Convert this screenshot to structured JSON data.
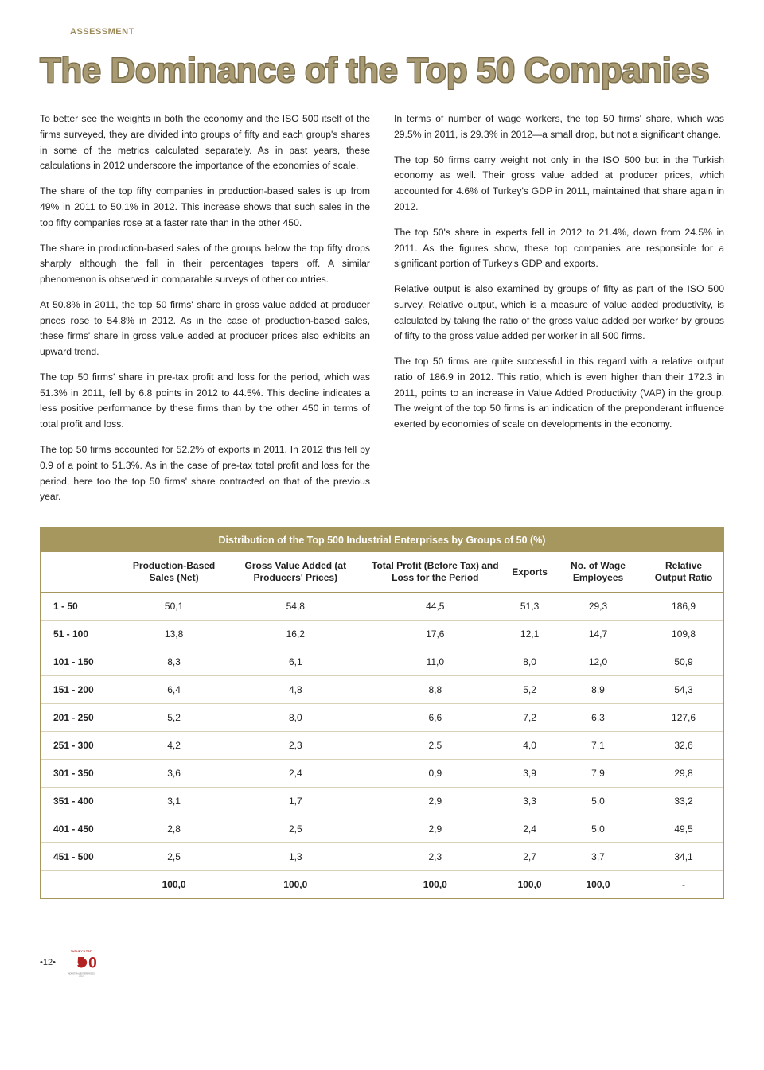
{
  "header": {
    "section_label": "ASSESSMENT",
    "title": "The Dominance of the Top 50 Companies"
  },
  "body": {
    "paragraphs": [
      "To better see the weights in both the economy and the ISO 500 itself of the firms surveyed, they are divided into groups of fifty and each group's shares in some of the metrics calculated separately. As in past years, these calculations in 2012 underscore the importance of the economies of scale.",
      "The share of the top fifty companies in production-based sales is up from 49% in 2011 to 50.1% in 2012. This increase shows that such sales in the top fifty companies rose at a faster rate than in the other 450.",
      "The share in production-based sales of the groups below the top fifty drops sharply although the fall in their percentages tapers off. A similar phenomenon is observed in comparable surveys of other countries.",
      "At 50.8% in 2011, the top 50 firms' share in gross value added at producer prices rose to 54.8% in 2012. As in the case of production-based sales, these firms' share in gross value added at producer prices also exhibits an upward trend.",
      "The top 50 firms' share in pre-tax profit and loss for the period, which was 51.3% in 2011, fell by 6.8 points in 2012 to 44.5%. This decline indicates a less positive performance by these firms than by the other 450 in terms of total profit and loss.",
      "The top 50 firms accounted for 52.2% of exports in 2011. In 2012 this fell by 0.9 of a point to 51.3%. As in the case of pre-tax total profit and loss for the period, here too the top 50 firms' share contracted on that of the previous year.",
      "In terms of number of wage workers, the top 50 firms' share, which was 29.5% in 2011, is 29.3% in 2012—a small drop, but not a significant change.",
      "The top 50 firms carry weight not only in the ISO 500 but in the Turkish economy as well. Their gross value added at producer prices, which accounted for 4.6% of Turkey's GDP in 2011, maintained that share again in 2012.",
      "The top 50's share in experts fell in 2012 to 21.4%, down from 24.5% in 2011. As the figures show, these top companies are responsible for a significant portion of Turkey's GDP and exports.",
      "Relative output is also examined by groups of fifty as part of the ISO 500 survey. Relative output, which is a measure of value added productivity, is calculated by taking the ratio of the gross value added per worker by groups of fifty to the gross value added per worker in all 500 firms.",
      "The top 50 firms are quite successful in this regard with a relative output ratio of 186.9 in 2012. This ratio, which is even higher than their 172.3 in 2011, points to an increase in Value Added Productivity (VAP) in the group. The weight of the top 50 firms is an indication of the preponderant influence exerted by economies of scale on developments in the economy."
    ]
  },
  "table": {
    "type": "table",
    "title": "Distribution of the Top 500 Industrial Enterprises by Groups of 50 (%)",
    "columns": [
      "",
      "Production-Based Sales (Net)",
      "Gross Value Added (at Producers' Prices)",
      "Total Profit (Before Tax) and Loss for the Period",
      "Exports",
      "No. of Wage Employees",
      "Relative Output Ratio"
    ],
    "rows": [
      [
        "1 - 50",
        "50,1",
        "54,8",
        "44,5",
        "51,3",
        "29,3",
        "186,9"
      ],
      [
        "51 - 100",
        "13,8",
        "16,2",
        "17,6",
        "12,1",
        "14,7",
        "109,8"
      ],
      [
        "101 - 150",
        "8,3",
        "6,1",
        "11,0",
        "8,0",
        "12,0",
        "50,9"
      ],
      [
        "151 - 200",
        "6,4",
        "4,8",
        "8,8",
        "5,2",
        "8,9",
        "54,3"
      ],
      [
        "201 - 250",
        "5,2",
        "8,0",
        "6,6",
        "7,2",
        "6,3",
        "127,6"
      ],
      [
        "251 - 300",
        "4,2",
        "2,3",
        "2,5",
        "4,0",
        "7,1",
        "32,6"
      ],
      [
        "301 - 350",
        "3,6",
        "2,4",
        "0,9",
        "3,9",
        "7,9",
        "29,8"
      ],
      [
        "351 - 400",
        "3,1",
        "1,7",
        "2,9",
        "3,3",
        "5,0",
        "33,2"
      ],
      [
        "401 - 450",
        "2,8",
        "2,5",
        "2,9",
        "2,4",
        "5,0",
        "49,5"
      ],
      [
        "451 - 500",
        "2,5",
        "1,3",
        "2,3",
        "2,7",
        "3,7",
        "34,1"
      ]
    ],
    "total_row": [
      "",
      "100,0",
      "100,0",
      "100,0",
      "100,0",
      "100,0",
      "-"
    ],
    "header_bg": "#a6975f",
    "header_color": "#ffffff",
    "border_color": "#a6975f",
    "row_border_color": "#d9d2b9",
    "font_size": 12
  },
  "footer": {
    "page_number": "•12•",
    "logo_top_text": "TURKEY'S TOP",
    "logo_number": "500",
    "logo_bottom_text": "INDUSTRIAL ENTERPRISES 2012",
    "logo_colors": {
      "text": "#b22222",
      "accent": "#b22222"
    }
  }
}
